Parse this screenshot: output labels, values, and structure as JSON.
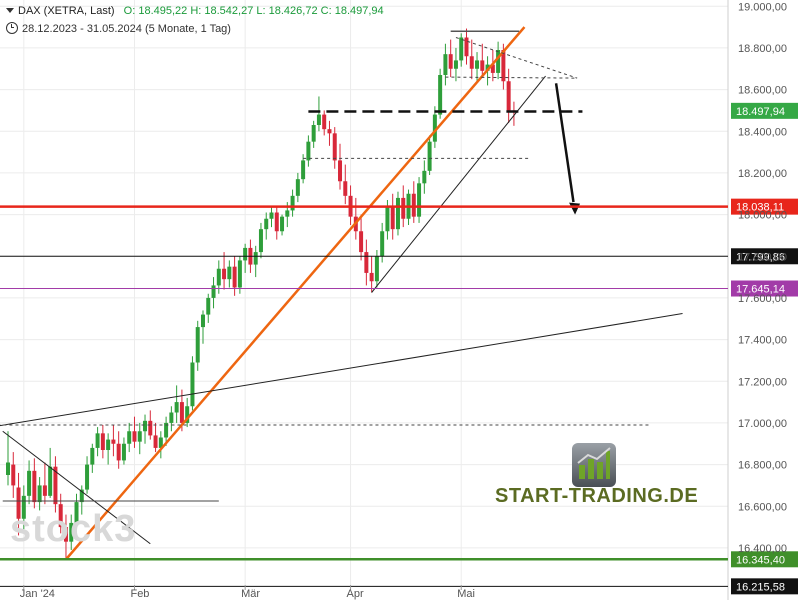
{
  "header": {
    "ticker": "DAX (XETRA, Last)",
    "open_label": "O:",
    "open": "18.495,22",
    "high_label": "H:",
    "high": "18.542,27",
    "low_label": "L:",
    "low": "18.426,72",
    "close_label": "C:",
    "close": "18.497,94",
    "range": "28.12.2023 - 31.05.2024",
    "period": "(5 Monate, 1 Tag)"
  },
  "watermark": "stock3",
  "logo_text": "START-TRADING.DE",
  "colors": {
    "up": "#2e9e3a",
    "down": "#d8283a",
    "orange_trend": "#ee6611",
    "red_level": "#e8261b",
    "purple_level": "#a23ba8",
    "green_level": "#3f8f2a",
    "price_label": "#35a845"
  },
  "chart_data": {
    "type": "candlestick",
    "y_axis": {
      "ylim": [
        16150,
        19030
      ],
      "ticks": [
        "16.400,00",
        "16.600,00",
        "16.800,00",
        "17.000,00",
        "17.200,00",
        "17.400,00",
        "17.600,00",
        "17.800,00",
        "18.000,00",
        "18.200,00",
        "18.400,00",
        "18.600,00",
        "18.800,00",
        "19.000,00"
      ],
      "tick_values": [
        16400,
        16600,
        16800,
        17000,
        17200,
        17400,
        17600,
        17800,
        18000,
        18200,
        18400,
        18600,
        18800,
        19000
      ]
    },
    "x_axis": {
      "labels": [
        "Jan '24",
        "Feb",
        "Mär",
        "Apr",
        "Mai"
      ],
      "label_index": [
        3,
        24,
        45,
        65,
        86
      ]
    },
    "candles": [
      {
        "o": 16750,
        "h": 16960,
        "l": 16700,
        "c": 16810
      },
      {
        "o": 16800,
        "h": 16860,
        "l": 16640,
        "c": 16700
      },
      {
        "o": 16690,
        "h": 16760,
        "l": 16460,
        "c": 16540
      },
      {
        "o": 16540,
        "h": 16700,
        "l": 16490,
        "c": 16650
      },
      {
        "o": 16650,
        "h": 16820,
        "l": 16610,
        "c": 16770
      },
      {
        "o": 16770,
        "h": 16830,
        "l": 16590,
        "c": 16620
      },
      {
        "o": 16620,
        "h": 16740,
        "l": 16580,
        "c": 16700
      },
      {
        "o": 16700,
        "h": 16810,
        "l": 16610,
        "c": 16650
      },
      {
        "o": 16650,
        "h": 16880,
        "l": 16640,
        "c": 16790
      },
      {
        "o": 16790,
        "h": 16840,
        "l": 16570,
        "c": 16610
      },
      {
        "o": 16610,
        "h": 16660,
        "l": 16470,
        "c": 16500
      },
      {
        "o": 16500,
        "h": 16560,
        "l": 16350,
        "c": 16430
      },
      {
        "o": 16430,
        "h": 16560,
        "l": 16390,
        "c": 16520
      },
      {
        "o": 16520,
        "h": 16660,
        "l": 16500,
        "c": 16620
      },
      {
        "o": 16620,
        "h": 16700,
        "l": 16560,
        "c": 16680
      },
      {
        "o": 16680,
        "h": 16840,
        "l": 16660,
        "c": 16800
      },
      {
        "o": 16800,
        "h": 16900,
        "l": 16760,
        "c": 16880
      },
      {
        "o": 16880,
        "h": 16980,
        "l": 16840,
        "c": 16950
      },
      {
        "o": 16950,
        "h": 16990,
        "l": 16830,
        "c": 16870
      },
      {
        "o": 16870,
        "h": 16950,
        "l": 16800,
        "c": 16920
      },
      {
        "o": 16920,
        "h": 16990,
        "l": 16840,
        "c": 16900
      },
      {
        "o": 16900,
        "h": 16960,
        "l": 16780,
        "c": 16820
      },
      {
        "o": 16820,
        "h": 16930,
        "l": 16800,
        "c": 16900
      },
      {
        "o": 16900,
        "h": 17000,
        "l": 16860,
        "c": 16960
      },
      {
        "o": 16960,
        "h": 17030,
        "l": 16880,
        "c": 16910
      },
      {
        "o": 16910,
        "h": 17000,
        "l": 16850,
        "c": 16960
      },
      {
        "o": 16960,
        "h": 17040,
        "l": 16900,
        "c": 17010
      },
      {
        "o": 17010,
        "h": 17060,
        "l": 16920,
        "c": 16940
      },
      {
        "o": 16940,
        "h": 17000,
        "l": 16860,
        "c": 16880
      },
      {
        "o": 16880,
        "h": 16960,
        "l": 16830,
        "c": 16930
      },
      {
        "o": 16930,
        "h": 17030,
        "l": 16890,
        "c": 17000
      },
      {
        "o": 17000,
        "h": 17080,
        "l": 16960,
        "c": 17050
      },
      {
        "o": 17050,
        "h": 17180,
        "l": 17000,
        "c": 17100
      },
      {
        "o": 17100,
        "h": 17160,
        "l": 16960,
        "c": 17000
      },
      {
        "o": 17000,
        "h": 17120,
        "l": 16980,
        "c": 17080
      },
      {
        "o": 17080,
        "h": 17320,
        "l": 17060,
        "c": 17290
      },
      {
        "o": 17290,
        "h": 17490,
        "l": 17250,
        "c": 17460
      },
      {
        "o": 17460,
        "h": 17540,
        "l": 17380,
        "c": 17520
      },
      {
        "o": 17520,
        "h": 17620,
        "l": 17480,
        "c": 17600
      },
      {
        "o": 17600,
        "h": 17700,
        "l": 17550,
        "c": 17660
      },
      {
        "o": 17660,
        "h": 17780,
        "l": 17620,
        "c": 17740
      },
      {
        "o": 17740,
        "h": 17820,
        "l": 17640,
        "c": 17690
      },
      {
        "o": 17690,
        "h": 17780,
        "l": 17650,
        "c": 17750
      },
      {
        "o": 17750,
        "h": 17800,
        "l": 17610,
        "c": 17650
      },
      {
        "o": 17650,
        "h": 17800,
        "l": 17620,
        "c": 17780
      },
      {
        "o": 17780,
        "h": 17860,
        "l": 17720,
        "c": 17840
      },
      {
        "o": 17840,
        "h": 17880,
        "l": 17720,
        "c": 17760
      },
      {
        "o": 17760,
        "h": 17850,
        "l": 17700,
        "c": 17820
      },
      {
        "o": 17820,
        "h": 17960,
        "l": 17790,
        "c": 17930
      },
      {
        "o": 17930,
        "h": 18010,
        "l": 17880,
        "c": 17980
      },
      {
        "o": 17980,
        "h": 18040,
        "l": 17940,
        "c": 18010
      },
      {
        "o": 18010,
        "h": 18040,
        "l": 17880,
        "c": 17920
      },
      {
        "o": 17920,
        "h": 18000,
        "l": 17900,
        "c": 17990
      },
      {
        "o": 17990,
        "h": 18060,
        "l": 17940,
        "c": 18020
      },
      {
        "o": 18020,
        "h": 18120,
        "l": 17990,
        "c": 18090
      },
      {
        "o": 18090,
        "h": 18200,
        "l": 18060,
        "c": 18170
      },
      {
        "o": 18170,
        "h": 18290,
        "l": 18150,
        "c": 18260
      },
      {
        "o": 18260,
        "h": 18380,
        "l": 18230,
        "c": 18350
      },
      {
        "o": 18350,
        "h": 18450,
        "l": 18320,
        "c": 18430
      },
      {
        "o": 18430,
        "h": 18567,
        "l": 18400,
        "c": 18480
      },
      {
        "o": 18480,
        "h": 18500,
        "l": 18380,
        "c": 18410
      },
      {
        "o": 18410,
        "h": 18450,
        "l": 18330,
        "c": 18390
      },
      {
        "o": 18390,
        "h": 18420,
        "l": 18220,
        "c": 18260
      },
      {
        "o": 18260,
        "h": 18340,
        "l": 18120,
        "c": 18160
      },
      {
        "o": 18160,
        "h": 18240,
        "l": 18050,
        "c": 18090
      },
      {
        "o": 18090,
        "h": 18140,
        "l": 17950,
        "c": 17990
      },
      {
        "o": 17990,
        "h": 18080,
        "l": 17880,
        "c": 17920
      },
      {
        "o": 17920,
        "h": 18000,
        "l": 17780,
        "c": 17820
      },
      {
        "o": 17820,
        "h": 17880,
        "l": 17660,
        "c": 17720
      },
      {
        "o": 17720,
        "h": 17800,
        "l": 17626,
        "c": 17680
      },
      {
        "o": 17680,
        "h": 17830,
        "l": 17650,
        "c": 17800
      },
      {
        "o": 17800,
        "h": 17960,
        "l": 17770,
        "c": 17920
      },
      {
        "o": 17920,
        "h": 18070,
        "l": 17880,
        "c": 18040
      },
      {
        "o": 18040,
        "h": 18100,
        "l": 17880,
        "c": 17930
      },
      {
        "o": 17930,
        "h": 18110,
        "l": 17900,
        "c": 18080
      },
      {
        "o": 18080,
        "h": 18140,
        "l": 17940,
        "c": 17980
      },
      {
        "o": 17980,
        "h": 18120,
        "l": 17950,
        "c": 18100
      },
      {
        "o": 18100,
        "h": 18160,
        "l": 17960,
        "c": 17990
      },
      {
        "o": 17990,
        "h": 18180,
        "l": 17960,
        "c": 18150
      },
      {
        "o": 18150,
        "h": 18260,
        "l": 18100,
        "c": 18210
      },
      {
        "o": 18210,
        "h": 18380,
        "l": 18190,
        "c": 18350
      },
      {
        "o": 18350,
        "h": 18520,
        "l": 18320,
        "c": 18480
      },
      {
        "o": 18480,
        "h": 18700,
        "l": 18460,
        "c": 18670
      },
      {
        "o": 18670,
        "h": 18820,
        "l": 18620,
        "c": 18770
      },
      {
        "o": 18770,
        "h": 18840,
        "l": 18660,
        "c": 18700
      },
      {
        "o": 18700,
        "h": 18800,
        "l": 18640,
        "c": 18740
      },
      {
        "o": 18740,
        "h": 18870,
        "l": 18710,
        "c": 18850
      },
      {
        "o": 18850,
        "h": 18893,
        "l": 18720,
        "c": 18760
      },
      {
        "o": 18760,
        "h": 18840,
        "l": 18650,
        "c": 18700
      },
      {
        "o": 18700,
        "h": 18780,
        "l": 18640,
        "c": 18740
      },
      {
        "o": 18740,
        "h": 18820,
        "l": 18660,
        "c": 18690
      },
      {
        "o": 18690,
        "h": 18760,
        "l": 18620,
        "c": 18720
      },
      {
        "o": 18720,
        "h": 18790,
        "l": 18640,
        "c": 18680
      },
      {
        "o": 18680,
        "h": 18830,
        "l": 18650,
        "c": 18790
      },
      {
        "o": 18790,
        "h": 18820,
        "l": 18600,
        "c": 18640
      },
      {
        "o": 18640,
        "h": 18700,
        "l": 18440,
        "c": 18500
      },
      {
        "o": 18500,
        "h": 18542,
        "l": 18426,
        "c": 18498
      }
    ],
    "horizontal_levels": [
      {
        "value": 18038.11,
        "label": "18.038,11",
        "style": "red"
      },
      {
        "value": 17799.86,
        "label": "17.799,86",
        "style": "black"
      },
      {
        "value": 17645.14,
        "label": "17.645,14",
        "style": "purple"
      },
      {
        "value": 16345.4,
        "label": "16.345,40",
        "style": "green"
      },
      {
        "value": 16215.58,
        "label": "16.215,58",
        "style": "black"
      }
    ],
    "current_price": {
      "value": 18497.94,
      "label": "18.497,94"
    }
  }
}
